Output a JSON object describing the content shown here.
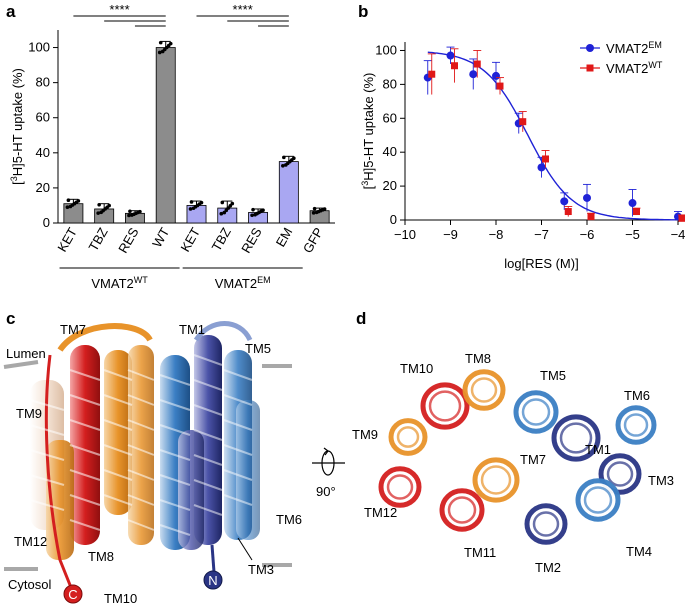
{
  "panels": {
    "a": "a",
    "b": "b",
    "c": "c",
    "d": "d"
  },
  "colors": {
    "wt_bar": "#8c8c8c",
    "em_bar": "#a9a7f2",
    "em_line": "#1f22d6",
    "wt_line": "#e01818",
    "orange": "#e8932a",
    "red": "#d41f1f",
    "blue": "#3b7fc4",
    "navy": "#2a3585"
  },
  "chart_data": [
    {
      "type": "bar",
      "panel": "a",
      "ylabel_parts": [
        "[",
        "3",
        "H]5-HT uptake (%)"
      ],
      "ylim": [
        0,
        110
      ],
      "yticks": [
        0,
        20,
        40,
        60,
        80,
        100
      ],
      "categories": [
        "KET",
        "TBZ",
        "RES",
        "WT",
        "KET",
        "TBZ",
        "RES",
        "EM",
        "GFP"
      ],
      "values": [
        11,
        8,
        5.5,
        100,
        10,
        8.5,
        6,
        35,
        7
      ],
      "errors": [
        2.5,
        3,
        1.5,
        3.5,
        2.5,
        4,
        2,
        3,
        1.5
      ],
      "groups": [
        {
          "label_main": "VMAT2",
          "label_sup": "WT",
          "members": [
            0,
            1,
            2,
            3
          ]
        },
        {
          "label_main": "VMAT2",
          "label_sup": "EM",
          "members": [
            4,
            5,
            6,
            7
          ]
        }
      ],
      "significance": "****"
    },
    {
      "type": "line",
      "panel": "b",
      "xlabel": "log[RES (M)]",
      "ylabel_parts": [
        "[",
        "3",
        "H]5-HT uptake (%)"
      ],
      "xlim": [
        -10,
        -4
      ],
      "ylim": [
        0,
        105
      ],
      "xticks": [
        -10,
        -9,
        -8,
        -7,
        -6,
        -5,
        -4
      ],
      "xtick_labels": [
        "−10",
        "−9",
        "−8",
        "−7",
        "−6",
        "−5",
        "−4"
      ],
      "yticks": [
        0,
        20,
        40,
        60,
        80,
        100
      ],
      "series": [
        {
          "name_main": "VMAT2",
          "name_sup": "EM",
          "marker": "circle",
          "x": [
            -9.5,
            -9,
            -8.5,
            -8,
            -7.5,
            -7,
            -6.5,
            -6,
            -5,
            -4
          ],
          "y": [
            84,
            97,
            86,
            85,
            57,
            31,
            11,
            13,
            10,
            2
          ],
          "err": [
            10,
            5,
            9,
            8,
            6,
            6,
            5,
            8,
            8,
            3
          ]
        },
        {
          "name_main": "VMAT2",
          "name_sup": "WT",
          "marker": "square",
          "x": [
            -9.5,
            -9,
            -8.5,
            -8,
            -7.5,
            -7,
            -6.5,
            -6,
            -5,
            -4
          ],
          "y": [
            86,
            91,
            92,
            79,
            58,
            36,
            5,
            2,
            5,
            1
          ],
          "err": [
            12,
            10,
            8,
            5,
            6,
            5,
            3,
            2,
            2,
            2
          ]
        }
      ],
      "fit": {
        "top": 100,
        "bottom": 0,
        "logIC50": -7.3,
        "hill": 0.9
      }
    }
  ],
  "figure_c": {
    "labels": {
      "tm7": "TM7",
      "tm1": "TM1",
      "tm5": "TM5",
      "tm9": "TM9",
      "tm6": "TM6",
      "tm12": "TM12",
      "tm8": "TM8",
      "tm10": "TM10",
      "tm3": "TM3"
    },
    "lumen": "Lumen",
    "cytosol": "Cytosol",
    "c_term": "C",
    "n_term": "N",
    "rotation": "90°"
  },
  "figure_d": {
    "labels": {
      "tm10": "TM10",
      "tm8": "TM8",
      "tm5": "TM5",
      "tm6": "TM6",
      "tm9": "TM9",
      "tm7": "TM7",
      "tm1": "TM1",
      "tm3": "TM3",
      "tm12": "TM12",
      "tm11": "TM11",
      "tm2": "TM2",
      "tm4": "TM4"
    }
  }
}
